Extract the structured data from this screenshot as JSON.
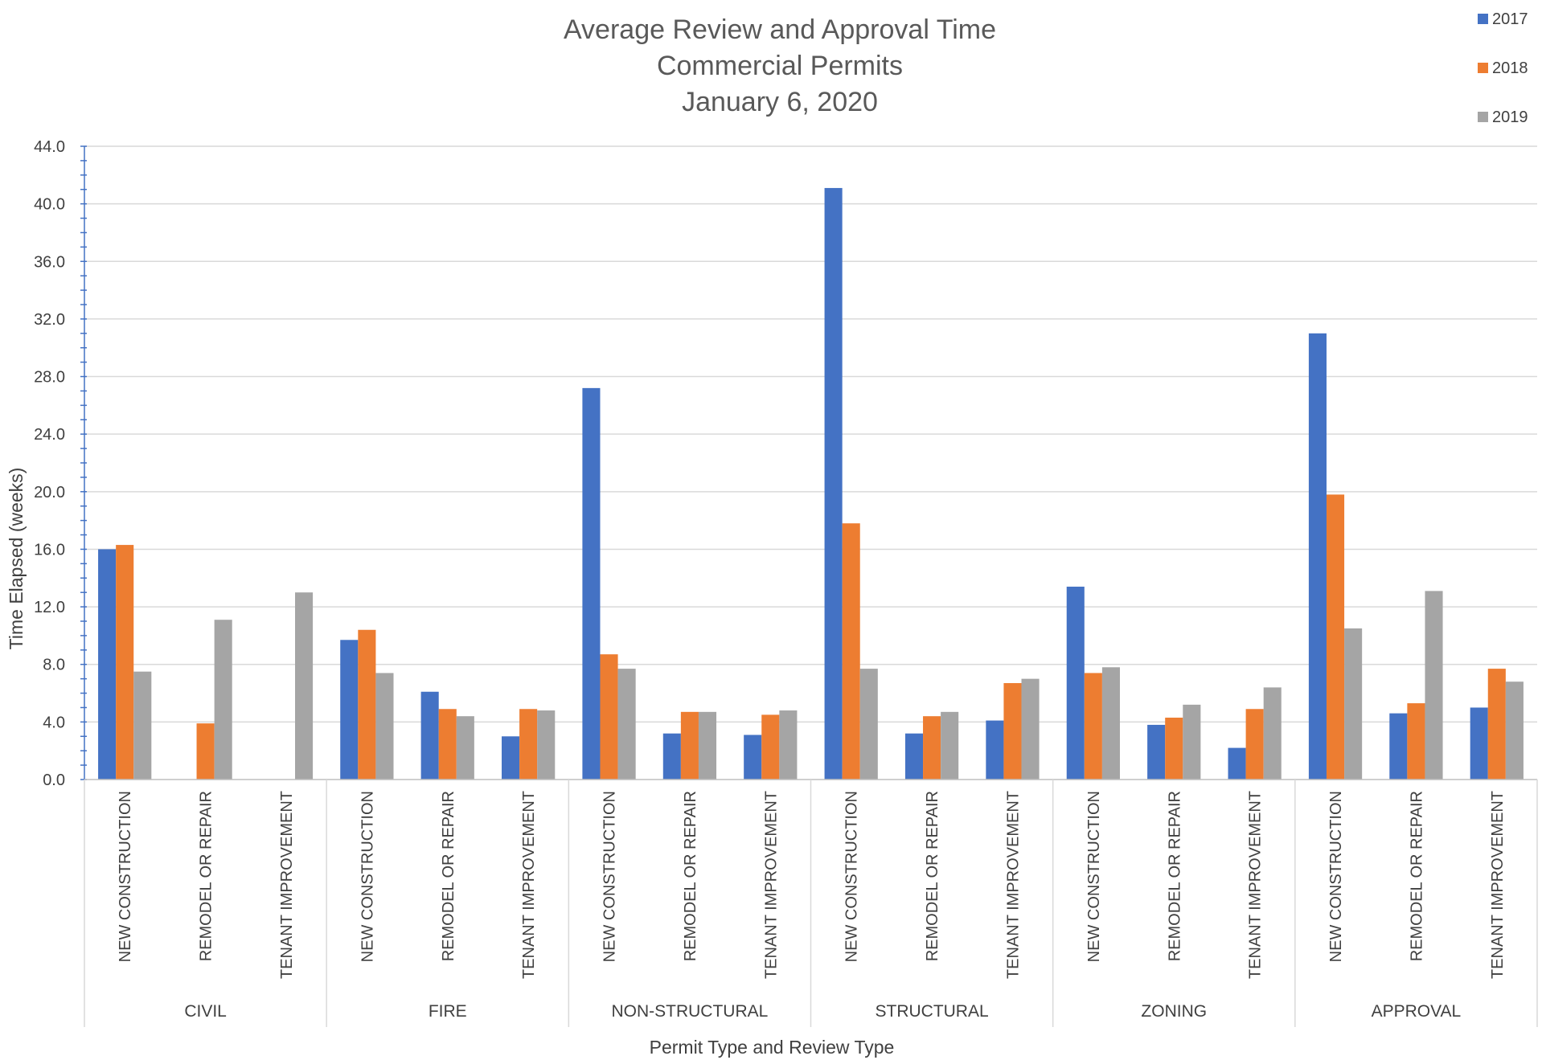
{
  "chart_data": {
    "type": "bar",
    "title": [
      "Average Review and Approval Time",
      "Commercial Permits",
      "January 6, 2020"
    ],
    "xlabel": "Permit Type and Review Type",
    "ylabel": "Time Elapsed (weeks)",
    "ylim": [
      0,
      44
    ],
    "y_ticks": [
      "0.0",
      "4.0",
      "8.0",
      "12.0",
      "16.0",
      "20.0",
      "24.0",
      "28.0",
      "32.0",
      "36.0",
      "40.0",
      "44.0"
    ],
    "grid": true,
    "legend_position": "top-right",
    "groups": [
      {
        "name": "CIVIL",
        "categories": [
          "NEW CONSTRUCTION",
          "REMODEL OR REPAIR",
          "TENANT IMPROVEMENT"
        ]
      },
      {
        "name": "FIRE",
        "categories": [
          "NEW CONSTRUCTION",
          "REMODEL OR REPAIR",
          "TENANT IMPROVEMENT"
        ]
      },
      {
        "name": "NON-STRUCTURAL",
        "categories": [
          "NEW CONSTRUCTION",
          "REMODEL OR REPAIR",
          "TENANT IMPROVEMENT"
        ]
      },
      {
        "name": "STRUCTURAL",
        "categories": [
          "NEW CONSTRUCTION",
          "REMODEL OR REPAIR",
          "TENANT IMPROVEMENT"
        ]
      },
      {
        "name": "ZONING",
        "categories": [
          "NEW CONSTRUCTION",
          "REMODEL OR REPAIR",
          "TENANT IMPROVEMENT"
        ]
      },
      {
        "name": "APPROVAL",
        "categories": [
          "NEW CONSTRUCTION",
          "REMODEL OR REPAIR",
          "TENANT IMPROVEMENT"
        ]
      }
    ],
    "series": [
      {
        "name": "2017",
        "color": "#4472C4",
        "values": [
          16.0,
          null,
          null,
          9.7,
          6.1,
          3.0,
          27.2,
          3.2,
          3.1,
          41.1,
          3.2,
          4.1,
          13.4,
          3.8,
          2.2,
          31.0,
          4.6,
          5.0
        ]
      },
      {
        "name": "2018",
        "color": "#ED7D31",
        "values": [
          16.3,
          3.9,
          null,
          10.4,
          4.9,
          4.9,
          8.7,
          4.7,
          4.5,
          17.8,
          4.4,
          6.7,
          7.4,
          4.3,
          4.9,
          19.8,
          5.3,
          7.7
        ]
      },
      {
        "name": "2019",
        "color": "#A5A5A5",
        "values": [
          7.5,
          11.1,
          13.0,
          7.4,
          4.4,
          4.8,
          7.7,
          4.7,
          4.8,
          7.7,
          4.7,
          7.0,
          7.8,
          5.2,
          6.4,
          10.5,
          13.1,
          6.8
        ]
      }
    ]
  }
}
